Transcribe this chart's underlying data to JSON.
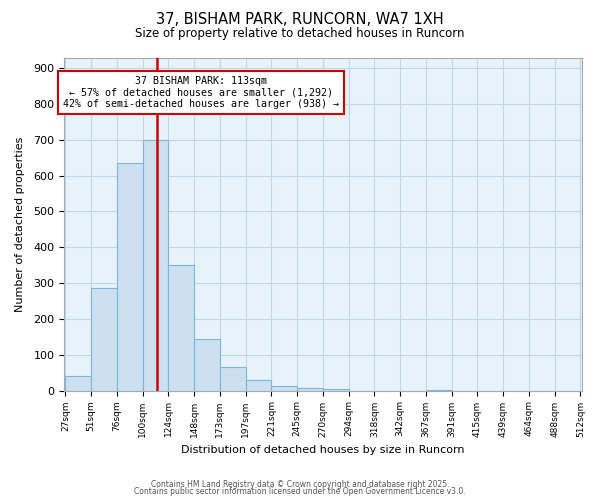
{
  "title": "37, BISHAM PARK, RUNCORN, WA7 1XH",
  "subtitle": "Size of property relative to detached houses in Runcorn",
  "xlabel": "Distribution of detached houses by size in Runcorn",
  "ylabel": "Number of detached properties",
  "bar_values": [
    42,
    285,
    635,
    700,
    350,
    145,
    65,
    30,
    12,
    8,
    5,
    0,
    0,
    0,
    2,
    0,
    0,
    0,
    0,
    0
  ],
  "bar_labels": [
    "27sqm",
    "51sqm",
    "76sqm",
    "100sqm",
    "124sqm",
    "148sqm",
    "173sqm",
    "197sqm",
    "221sqm",
    "245sqm",
    "270sqm",
    "294sqm",
    "318sqm",
    "342sqm",
    "367sqm",
    "391sqm",
    "415sqm",
    "439sqm",
    "464sqm",
    "488sqm",
    "512sqm"
  ],
  "bar_color": "#cce0f0",
  "bar_edge_color": "#7ab8d8",
  "red_line_color": "#cc0000",
  "annotation_title": "37 BISHAM PARK: 113sqm",
  "annotation_line1": "← 57% of detached houses are smaller (1,292)",
  "annotation_line2": "42% of semi-detached houses are larger (938) →",
  "annotation_box_color": "#ffffff",
  "annotation_box_edge_color": "#cc0000",
  "ylim": [
    0,
    930
  ],
  "yticks": [
    0,
    100,
    200,
    300,
    400,
    500,
    600,
    700,
    800,
    900
  ],
  "grid_color": "#c0d8ec",
  "background_color": "#e8f2fb",
  "footer1": "Contains HM Land Registry data © Crown copyright and database right 2025.",
  "footer2": "Contains public sector information licensed under the Open Government Licence v3.0."
}
